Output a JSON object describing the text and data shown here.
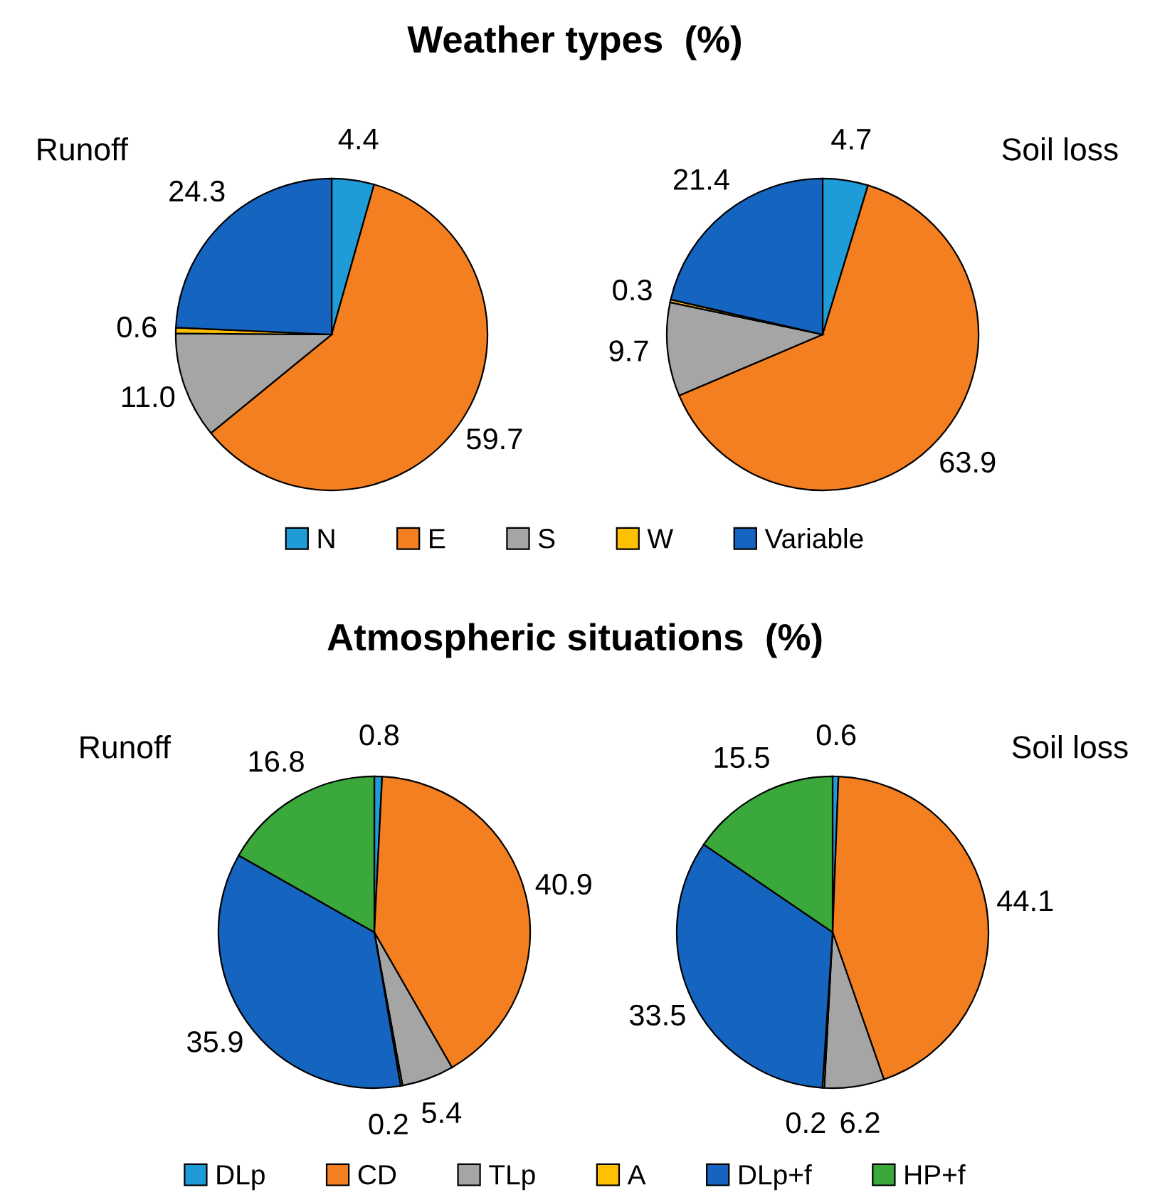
{
  "chart_data": [
    {
      "type": "pie",
      "title": "Runoff",
      "annotations": [
        "Weather types  (%)"
      ],
      "categories": [
        "N",
        "E",
        "S",
        "W",
        "Variable"
      ],
      "values": [
        4.4,
        59.7,
        11.0,
        0.6,
        24.3
      ],
      "value_labels": [
        "4.4",
        "59.7",
        "11.0",
        "0.6",
        "24.3"
      ],
      "colors": [
        "#1f9bd7",
        "#f47f20",
        "#a5a5a5",
        "#ffc000",
        "#1565c0"
      ],
      "legend": "bottom"
    },
    {
      "type": "pie",
      "title": "Soil loss",
      "categories": [
        null,
        null,
        null,
        null,
        null
      ],
      "values": [
        4.7,
        63.9,
        9.7,
        0.3,
        21.4
      ],
      "value_labels": [
        "4.7",
        "63.9",
        "9.7",
        "0.3",
        "21.4"
      ],
      "colors": [
        "#1f9bd7",
        "#f47f20",
        "#a5a5a5",
        "#ffc000",
        "#1565c0"
      ]
    },
    {
      "type": "pie",
      "title": "Runoff",
      "annotations": [
        "Atmospheric situations  (%)"
      ],
      "categories": [
        "DLp",
        "CD",
        "TLp",
        "A",
        "DLp+f",
        "HP+f"
      ],
      "values": [
        0.8,
        40.9,
        5.4,
        0.2,
        35.9,
        16.8
      ],
      "value_labels": [
        "0.8",
        "40.9",
        "5.4",
        "0.2",
        "35.9",
        "16.8"
      ],
      "colors": [
        "#1f9bd7",
        "#f47f20",
        "#a5a5a5",
        "#ffc000",
        "#1565c0",
        "#3aa83a"
      ],
      "legend": "bottom"
    },
    {
      "type": "pie",
      "title": "Soil loss",
      "categories": [
        null,
        null,
        null,
        null,
        null,
        null
      ],
      "values": [
        0.6,
        44.1,
        6.2,
        0.2,
        33.5,
        15.5
      ],
      "value_labels": [
        "0.6",
        "44.1",
        "6.2",
        "0.2",
        "33.5",
        "15.5"
      ],
      "colors": [
        "#1f9bd7",
        "#f47f20",
        "#a5a5a5",
        "#ffc000",
        "#1565c0",
        "#3aa83a"
      ]
    }
  ]
}
